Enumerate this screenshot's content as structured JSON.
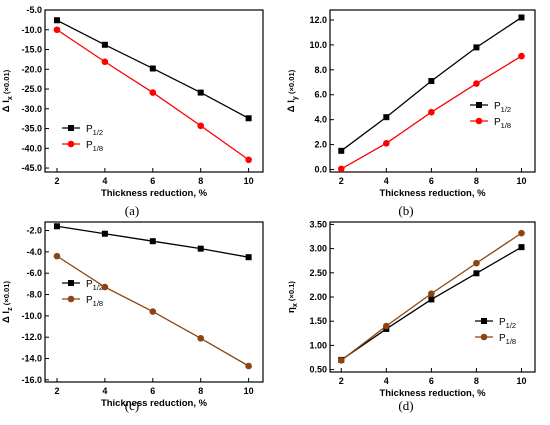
{
  "panels": [
    {
      "caption": "(a)",
      "chart_data": {
        "type": "line",
        "x": [
          2,
          4,
          6,
          8,
          10
        ],
        "xlim": [
          1.5,
          10.6
        ],
        "ylim": [
          -46,
          -5
        ],
        "xticks": [
          2,
          4,
          6,
          8,
          10
        ],
        "yticks": [
          -5,
          -10,
          -15,
          -20,
          -25,
          -30,
          -35,
          -40,
          -45
        ],
        "ytick_labels": [
          "-5.0",
          "-10.0",
          "-15.0",
          "-20.0",
          "-25.0",
          "-30.0",
          "-35.0",
          "-40.0",
          "-45.0"
        ],
        "xlabel": "Thickness reduction, %",
        "ylabel_main": "Δ l",
        "ylabel_sub": "x",
        "ylabel_unit": " (×0.01)",
        "legend": "bottom-left",
        "series": [
          {
            "name_main": "P",
            "name_sub": "1/2",
            "color": "#000000",
            "marker": "square",
            "values": [
              -7.6,
              -13.8,
              -19.8,
              -25.9,
              -32.4
            ]
          },
          {
            "name_main": "P",
            "name_sub": "1/8",
            "color": "#ff0000",
            "marker": "circle",
            "values": [
              -10.0,
              -18.1,
              -25.9,
              -34.3,
              -42.9
            ]
          }
        ]
      }
    },
    {
      "caption": "(b)",
      "chart_data": {
        "type": "line",
        "x": [
          2,
          4,
          6,
          8,
          10
        ],
        "xlim": [
          1.5,
          10.6
        ],
        "ylim": [
          -0.2,
          12.8
        ],
        "xticks": [
          2,
          4,
          6,
          8,
          10
        ],
        "yticks": [
          0,
          2,
          4,
          6,
          8,
          10,
          12
        ],
        "ytick_labels": [
          "0.0",
          "2.0",
          "4.0",
          "6.0",
          "8.0",
          "10.0",
          "12.0"
        ],
        "xlabel": "Thickness reduction, %",
        "ylabel_main": "Δ l",
        "ylabel_sub": "y",
        "ylabel_unit": " (×0.01)",
        "legend": "center-right",
        "series": [
          {
            "name_main": "P",
            "name_sub": "1/2",
            "color": "#000000",
            "marker": "square",
            "values": [
              1.5,
              4.2,
              7.1,
              9.8,
              12.2
            ]
          },
          {
            "name_main": "P",
            "name_sub": "1/8",
            "color": "#ff0000",
            "marker": "circle",
            "values": [
              0.05,
              2.1,
              4.6,
              6.9,
              9.1
            ]
          }
        ]
      }
    },
    {
      "caption": "(c)",
      "chart_data": {
        "type": "line",
        "x": [
          2,
          4,
          6,
          8,
          10
        ],
        "xlim": [
          1.5,
          10.6
        ],
        "ylim": [
          -16.2,
          -1.2
        ],
        "xticks": [
          2,
          4,
          6,
          8,
          10
        ],
        "yticks": [
          -2,
          -4,
          -6,
          -8,
          -10,
          -12,
          -14,
          -16
        ],
        "ytick_labels": [
          "-2.0",
          "-4.0",
          "-6.0",
          "-8.0",
          "-10.0",
          "-12.0",
          "-14.0",
          "-16.0"
        ],
        "xlabel": "Thickness reduction, %",
        "ylabel_main": "Δ l",
        "ylabel_sub": "z",
        "ylabel_unit": " (×0.01)",
        "legend": "upper-left",
        "series": [
          {
            "name_main": "P",
            "name_sub": "1/2",
            "color": "#000000",
            "marker": "square",
            "values": [
              -1.6,
              -2.3,
              -3.0,
              -3.7,
              -4.5
            ]
          },
          {
            "name_main": "P",
            "name_sub": "1/8",
            "color": "#8b4513",
            "marker": "circle",
            "values": [
              -4.4,
              -7.3,
              -9.6,
              -12.1,
              -14.7
            ]
          }
        ]
      }
    },
    {
      "caption": "(d)",
      "chart_data": {
        "type": "line",
        "x": [
          2,
          4,
          6,
          8,
          10
        ],
        "xlim": [
          1.5,
          10.6
        ],
        "ylim": [
          0.45,
          3.55
        ],
        "xticks": [
          2,
          4,
          6,
          8,
          10
        ],
        "yticks": [
          0.5,
          1.0,
          1.5,
          2.0,
          2.5,
          3.0,
          3.5
        ],
        "ytick_labels": [
          "0.50",
          "1.00",
          "1.50",
          "2.00",
          "2.50",
          "3.00",
          "3.50"
        ],
        "xlabel": "Thickness reduction, %",
        "ylabel_main": "η",
        "ylabel_sub": "x",
        "ylabel_unit": " (×0.1)",
        "legend": "bottom-right",
        "series": [
          {
            "name_main": "P",
            "name_sub": "1/2",
            "color": "#000000",
            "marker": "square",
            "values": [
              0.7,
              1.34,
              1.95,
              2.49,
              3.03
            ]
          },
          {
            "name_main": "P",
            "name_sub": "1/8",
            "color": "#8b4513",
            "marker": "circle",
            "values": [
              0.69,
              1.4,
              2.07,
              2.7,
              3.32
            ]
          }
        ]
      }
    }
  ]
}
